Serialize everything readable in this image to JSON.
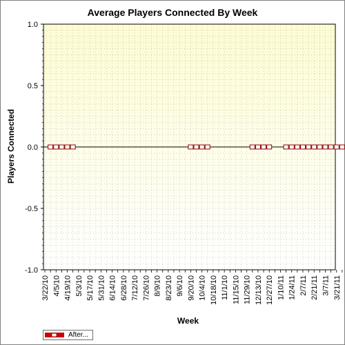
{
  "chart_data": {
    "type": "line",
    "title": "Average Players Connected By Week",
    "xlabel": "Week",
    "ylabel": "Players Connected",
    "ylim": [
      -1.0,
      1.0
    ],
    "yticks": [
      "1.0",
      "0.5",
      "0.0",
      "-0.5",
      "-1.0"
    ],
    "x_tick_labels": [
      "3/22/10",
      "4/5/10",
      "4/19/10",
      "5/3/10",
      "5/17/10",
      "5/31/10",
      "6/14/10",
      "6/28/10",
      "7/12/10",
      "7/26/10",
      "8/9/10",
      "8/23/10",
      "9/6/10",
      "9/20/10",
      "10/4/10",
      "10/18/10",
      "11/1/10",
      "11/15/10",
      "11/29/10",
      "12/13/10",
      "12/27/10",
      "1/10/11",
      "1/24/11",
      "2/7/11",
      "2/21/11",
      "3/7/11",
      "3/21/11"
    ],
    "weeks": [
      "3/22/10",
      "3/29/10",
      "4/5/10",
      "4/12/10",
      "4/19/10",
      "4/26/10",
      "5/3/10",
      "5/10/10",
      "5/17/10",
      "5/24/10",
      "5/31/10",
      "6/7/10",
      "6/14/10",
      "6/21/10",
      "6/28/10",
      "7/5/10",
      "7/12/10",
      "7/19/10",
      "7/26/10",
      "8/2/10",
      "8/9/10",
      "8/16/10",
      "8/23/10",
      "8/30/10",
      "9/6/10",
      "9/13/10",
      "9/20/10",
      "9/27/10",
      "10/4/10",
      "10/11/10",
      "10/18/10",
      "10/25/10",
      "11/1/10",
      "11/8/10",
      "11/15/10",
      "11/22/10",
      "11/29/10",
      "12/6/10",
      "12/13/10",
      "12/20/10",
      "12/27/10",
      "1/3/11",
      "1/10/11",
      "1/17/11",
      "1/24/11",
      "1/31/11",
      "2/7/11",
      "2/14/11",
      "2/21/11",
      "2/28/11",
      "3/7/11",
      "3/14/11",
      "3/21/11",
      "3/28/11"
    ],
    "series": [
      {
        "name": "After...",
        "points": [
          {
            "x": "3/29/10",
            "y": 0
          },
          {
            "x": "4/5/10",
            "y": 0
          },
          {
            "x": "4/12/10",
            "y": 0
          },
          {
            "x": "4/19/10",
            "y": 0
          },
          {
            "x": "4/26/10",
            "y": 0
          },
          {
            "x": "9/20/10",
            "y": 0
          },
          {
            "x": "9/27/10",
            "y": 0
          },
          {
            "x": "10/4/10",
            "y": 0
          },
          {
            "x": "10/11/10",
            "y": 0
          },
          {
            "x": "12/6/10",
            "y": 0
          },
          {
            "x": "12/13/10",
            "y": 0
          },
          {
            "x": "12/20/10",
            "y": 0
          },
          {
            "x": "12/27/10",
            "y": 0
          },
          {
            "x": "1/17/11",
            "y": 0
          },
          {
            "x": "1/24/11",
            "y": 0
          },
          {
            "x": "1/31/11",
            "y": 0
          },
          {
            "x": "2/7/11",
            "y": 0
          },
          {
            "x": "2/14/11",
            "y": 0
          },
          {
            "x": "2/21/11",
            "y": 0
          },
          {
            "x": "2/28/11",
            "y": 0
          },
          {
            "x": "3/7/11",
            "y": 0
          },
          {
            "x": "3/14/11",
            "y": 0
          },
          {
            "x": "3/21/11",
            "y": 0
          },
          {
            "x": "3/28/11",
            "y": 0
          }
        ]
      }
    ],
    "grid": true,
    "legend_position": "bottom-left",
    "colors": {
      "plot_top": "#fdfcd2",
      "plot_bottom": "#ffffff",
      "grid": "#5a5a5a",
      "series_line": "#000000",
      "marker_fill": "#ffffff",
      "marker_stroke": "#8b0000",
      "legend_swatch": "#cc0000"
    }
  }
}
